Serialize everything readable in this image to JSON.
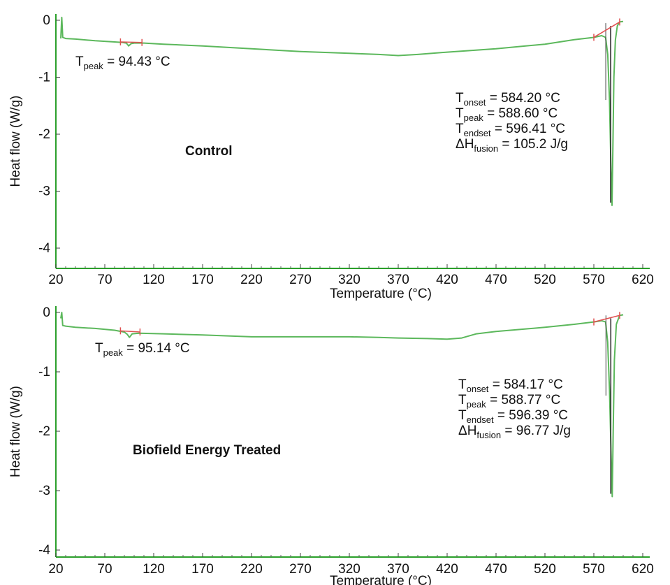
{
  "chart_data": [
    {
      "type": "line",
      "panel": "control",
      "sample_label": "Control",
      "xlabel": "Temperature (°C)",
      "ylabel": "Heat flow (W/g)",
      "xlim": [
        20,
        620
      ],
      "ylim": [
        -4.3,
        0.1
      ],
      "x_ticks": [
        "20",
        "70",
        "120",
        "170",
        "220",
        "270",
        "320",
        "370",
        "420",
        "470",
        "520",
        "570",
        "620"
      ],
      "y_ticks": [
        "0",
        "-1",
        "-2",
        "-3",
        "-4"
      ],
      "series": [
        {
          "color": "#5cb85c",
          "x": [
            25,
            26,
            27,
            30,
            40,
            60,
            80,
            88,
            92,
            94.43,
            97,
            100,
            110,
            130,
            170,
            220,
            270,
            320,
            350,
            370,
            390,
            420,
            470,
            520,
            550,
            570,
            578,
            582,
            584.2,
            586,
            587.5,
            588.6,
            589.5,
            590.5,
            592,
            594,
            596.41,
            600
          ],
          "y": [
            -0.32,
            0.05,
            -0.3,
            -0.32,
            -0.33,
            -0.36,
            -0.38,
            -0.39,
            -0.4,
            -0.45,
            -0.41,
            -0.4,
            -0.4,
            -0.42,
            -0.45,
            -0.5,
            -0.55,
            -0.58,
            -0.6,
            -0.62,
            -0.6,
            -0.56,
            -0.5,
            -0.42,
            -0.34,
            -0.3,
            -0.27,
            -0.3,
            -0.6,
            -1.4,
            -2.6,
            -3.25,
            -2.2,
            -1.0,
            -0.35,
            -0.1,
            -0.03,
            -0.02
          ]
        }
      ],
      "baselines": [
        {
          "color": "#e05050",
          "x": [
            86,
            108
          ],
          "y": [
            -0.38,
            -0.39
          ]
        },
        {
          "color": "#e05050",
          "x": [
            570,
            596.41
          ],
          "y": [
            -0.3,
            -0.03
          ]
        }
      ],
      "annotations": {
        "low_peak": {
          "t": "T",
          "sub": "peak",
          "rest": " = 94.43 °C"
        },
        "lines": [
          {
            "t": "T",
            "sub": "onset",
            "rest": " = 584.20 °C"
          },
          {
            "t": "T",
            "sub": "peak",
            "rest": " = 588.60 °C"
          },
          {
            "t": "T",
            "sub": "endset",
            "rest": " = 596.41 °C"
          },
          {
            "t": "ΔH",
            "sub": "fusion",
            "rest": " = 105.2 J/g"
          }
        ]
      }
    },
    {
      "type": "line",
      "panel": "treated",
      "sample_label": "Biofield Energy Treated",
      "xlabel": "Temperature (°C)",
      "ylabel": "Heat flow (W/g)",
      "xlim": [
        20,
        620
      ],
      "ylim": [
        -4.0,
        0.1
      ],
      "x_ticks": [
        "20",
        "70",
        "120",
        "170",
        "220",
        "270",
        "320",
        "370",
        "420",
        "470",
        "520",
        "570",
        "620"
      ],
      "y_ticks": [
        "0",
        "-1",
        "-2",
        "-3",
        "-4"
      ],
      "series": [
        {
          "color": "#5cb85c",
          "x": [
            25,
            26,
            27,
            30,
            40,
            60,
            80,
            90,
            93,
            95.14,
            98,
            105,
            130,
            170,
            220,
            270,
            320,
            350,
            370,
            400,
            420,
            435,
            450,
            470,
            520,
            550,
            570,
            578,
            582,
            584.17,
            586,
            587.5,
            588.77,
            589.8,
            591,
            593,
            596.39,
            600
          ],
          "y": [
            -0.1,
            0.0,
            -0.22,
            -0.23,
            -0.25,
            -0.27,
            -0.3,
            -0.33,
            -0.37,
            -0.42,
            -0.36,
            -0.35,
            -0.36,
            -0.38,
            -0.41,
            -0.41,
            -0.41,
            -0.42,
            -0.43,
            -0.44,
            -0.45,
            -0.43,
            -0.36,
            -0.32,
            -0.25,
            -0.2,
            -0.16,
            -0.14,
            -0.16,
            -0.5,
            -1.3,
            -2.3,
            -3.1,
            -2.0,
            -0.8,
            -0.2,
            -0.05,
            -0.04
          ]
        }
      ],
      "baselines": [
        {
          "color": "#e05050",
          "x": [
            86,
            106
          ],
          "y": [
            -0.31,
            -0.33
          ]
        },
        {
          "color": "#e05050",
          "x": [
            570,
            596.39
          ],
          "y": [
            -0.16,
            -0.05
          ]
        }
      ],
      "annotations": {
        "low_peak": {
          "t": "T",
          "sub": "peak",
          "rest": " = 95.14 °C"
        },
        "lines": [
          {
            "t": "T",
            "sub": "onset",
            "rest": " = 584.17 °C"
          },
          {
            "t": "T",
            "sub": "peak",
            "rest": " = 588.77 °C"
          },
          {
            "t": "T",
            "sub": "endset",
            "rest": " = 596.39 °C"
          },
          {
            "t": "ΔH",
            "sub": "fusion",
            "rest": " = 96.77 J/g"
          }
        ]
      }
    }
  ]
}
